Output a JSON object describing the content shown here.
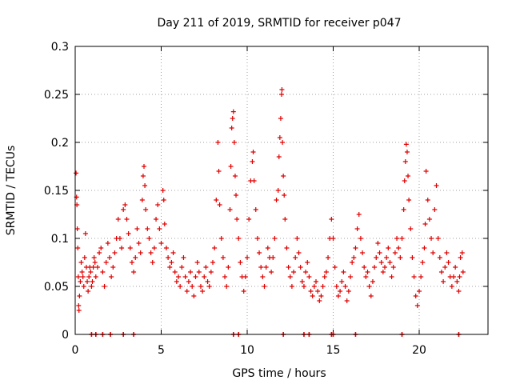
{
  "chart_data": {
    "type": "scatter",
    "title": "Day 211 of 2019, SRMTID for receiver p047",
    "xlabel": "GPS time / hours",
    "ylabel": "SRMTID / TECUs",
    "xlim": [
      0,
      24
    ],
    "ylim": [
      0,
      0.3
    ],
    "grid": true,
    "marker": "+",
    "color": "#e00000",
    "xticks": [
      {
        "value": 0,
        "label": "0"
      },
      {
        "value": 5,
        "label": "5"
      },
      {
        "value": 10,
        "label": "10"
      },
      {
        "value": 15,
        "label": "15"
      },
      {
        "value": 20,
        "label": "20"
      }
    ],
    "yticks": [
      {
        "value": 0,
        "label": "0"
      },
      {
        "value": 0.05,
        "label": "0.05"
      },
      {
        "value": 0.1,
        "label": "0.1"
      },
      {
        "value": 0.15,
        "label": "0.15"
      },
      {
        "value": 0.2,
        "label": "0.2"
      },
      {
        "value": 0.25,
        "label": "0.25"
      },
      {
        "value": 0.3,
        "label": "0.3"
      }
    ],
    "series": [
      {
        "name": "SRMTID",
        "points": [
          [
            0.05,
            0.168
          ],
          [
            0.08,
            0.143
          ],
          [
            0.1,
            0.135
          ],
          [
            0.12,
            0.11
          ],
          [
            0.15,
            0.09
          ],
          [
            0.18,
            0.06
          ],
          [
            0.2,
            0.03
          ],
          [
            0.22,
            0.025
          ],
          [
            0.25,
            0.04
          ],
          [
            0.3,
            0.055
          ],
          [
            0.35,
            0.075
          ],
          [
            0.4,
            0.065
          ],
          [
            0.45,
            0.06
          ],
          [
            0.5,
            0.05
          ],
          [
            0.55,
            0.08
          ],
          [
            0.6,
            0.105
          ],
          [
            0.65,
            0.07
          ],
          [
            0.7,
            0.055
          ],
          [
            0.75,
            0.045
          ],
          [
            0.8,
            0.06
          ],
          [
            0.85,
            0.07
          ],
          [
            0.9,
            0.065
          ],
          [
            0.95,
            0.05
          ],
          [
            1.0,
            0.055
          ],
          [
            1.05,
            0.07
          ],
          [
            1.1,
            0.08
          ],
          [
            1.15,
            0.075
          ],
          [
            1.2,
            0.06
          ],
          [
            1.3,
            0.07
          ],
          [
            1.4,
            0.085
          ],
          [
            1.5,
            0.09
          ],
          [
            1.6,
            0.065
          ],
          [
            1.7,
            0.05
          ],
          [
            1.8,
            0.075
          ],
          [
            1.9,
            0.095
          ],
          [
            2.0,
            0.08
          ],
          [
            2.1,
            0.06
          ],
          [
            2.2,
            0.07
          ],
          [
            2.3,
            0.085
          ],
          [
            2.4,
            0.1
          ],
          [
            2.5,
            0.12
          ],
          [
            2.6,
            0.1
          ],
          [
            2.7,
            0.09
          ],
          [
            2.8,
            0.13
          ],
          [
            2.9,
            0.135
          ],
          [
            3.0,
            0.12
          ],
          [
            3.1,
            0.105
          ],
          [
            3.2,
            0.09
          ],
          [
            3.3,
            0.075
          ],
          [
            3.4,
            0.065
          ],
          [
            3.5,
            0.08
          ],
          [
            3.6,
            0.11
          ],
          [
            3.7,
            0.095
          ],
          [
            3.8,
            0.085
          ],
          [
            3.9,
            0.14
          ],
          [
            3.95,
            0.165
          ],
          [
            4.0,
            0.175
          ],
          [
            4.05,
            0.155
          ],
          [
            4.1,
            0.13
          ],
          [
            4.2,
            0.11
          ],
          [
            4.3,
            0.1
          ],
          [
            4.4,
            0.085
          ],
          [
            4.5,
            0.075
          ],
          [
            4.6,
            0.09
          ],
          [
            4.7,
            0.12
          ],
          [
            4.8,
            0.135
          ],
          [
            4.9,
            0.11
          ],
          [
            5.0,
            0.095
          ],
          [
            5.1,
            0.15
          ],
          [
            5.15,
            0.14
          ],
          [
            5.2,
            0.115
          ],
          [
            5.3,
            0.09
          ],
          [
            5.4,
            0.08
          ],
          [
            5.5,
            0.07
          ],
          [
            5.6,
            0.075
          ],
          [
            5.7,
            0.085
          ],
          [
            5.8,
            0.065
          ],
          [
            5.9,
            0.055
          ],
          [
            6.0,
            0.06
          ],
          [
            6.1,
            0.05
          ],
          [
            6.2,
            0.07
          ],
          [
            6.3,
            0.08
          ],
          [
            6.4,
            0.06
          ],
          [
            6.5,
            0.045
          ],
          [
            6.6,
            0.055
          ],
          [
            6.7,
            0.065
          ],
          [
            6.8,
            0.05
          ],
          [
            6.9,
            0.04
          ],
          [
            7.0,
            0.06
          ],
          [
            7.1,
            0.075
          ],
          [
            7.2,
            0.065
          ],
          [
            7.3,
            0.05
          ],
          [
            7.4,
            0.045
          ],
          [
            7.5,
            0.06
          ],
          [
            7.6,
            0.07
          ],
          [
            7.7,
            0.055
          ],
          [
            7.8,
            0.05
          ],
          [
            7.9,
            0.065
          ],
          [
            8.0,
            0.075
          ],
          [
            8.1,
            0.09
          ],
          [
            8.2,
            0.14
          ],
          [
            8.3,
            0.2
          ],
          [
            8.35,
            0.17
          ],
          [
            8.4,
            0.135
          ],
          [
            8.5,
            0.1
          ],
          [
            8.6,
            0.08
          ],
          [
            8.7,
            0.06
          ],
          [
            8.8,
            0.05
          ],
          [
            8.9,
            0.07
          ],
          [
            9.0,
            0.13
          ],
          [
            9.05,
            0.175
          ],
          [
            9.1,
            0.215
          ],
          [
            9.15,
            0.225
          ],
          [
            9.2,
            0.232
          ],
          [
            9.25,
            0.2
          ],
          [
            9.3,
            0.165
          ],
          [
            9.35,
            0.145
          ],
          [
            9.4,
            0.12
          ],
          [
            9.5,
            0.1
          ],
          [
            9.6,
            0.075
          ],
          [
            9.7,
            0.06
          ],
          [
            9.8,
            0.045
          ],
          [
            9.9,
            0.06
          ],
          [
            10.0,
            0.08
          ],
          [
            10.1,
            0.12
          ],
          [
            10.2,
            0.16
          ],
          [
            10.3,
            0.18
          ],
          [
            10.35,
            0.19
          ],
          [
            10.4,
            0.16
          ],
          [
            10.5,
            0.13
          ],
          [
            10.6,
            0.1
          ],
          [
            10.7,
            0.085
          ],
          [
            10.8,
            0.07
          ],
          [
            10.9,
            0.06
          ],
          [
            11.0,
            0.05
          ],
          [
            11.1,
            0.07
          ],
          [
            11.2,
            0.09
          ],
          [
            11.3,
            0.08
          ],
          [
            11.4,
            0.065
          ],
          [
            11.5,
            0.08
          ],
          [
            11.6,
            0.1
          ],
          [
            11.7,
            0.14
          ],
          [
            11.8,
            0.15
          ],
          [
            11.85,
            0.185
          ],
          [
            11.9,
            0.205
          ],
          [
            11.95,
            0.225
          ],
          [
            12.0,
            0.25
          ],
          [
            12.02,
            0.255
          ],
          [
            12.05,
            0.2
          ],
          [
            12.1,
            0.165
          ],
          [
            12.15,
            0.145
          ],
          [
            12.2,
            0.12
          ],
          [
            12.3,
            0.09
          ],
          [
            12.4,
            0.07
          ],
          [
            12.5,
            0.06
          ],
          [
            12.6,
            0.05
          ],
          [
            12.7,
            0.065
          ],
          [
            12.8,
            0.08
          ],
          [
            12.9,
            0.1
          ],
          [
            13.0,
            0.085
          ],
          [
            13.1,
            0.07
          ],
          [
            13.2,
            0.055
          ],
          [
            13.3,
            0.05
          ],
          [
            13.4,
            0.065
          ],
          [
            13.5,
            0.075
          ],
          [
            13.6,
            0.06
          ],
          [
            13.7,
            0.045
          ],
          [
            13.8,
            0.04
          ],
          [
            13.9,
            0.05
          ],
          [
            14.0,
            0.055
          ],
          [
            14.1,
            0.045
          ],
          [
            14.2,
            0.035
          ],
          [
            14.3,
            0.04
          ],
          [
            14.4,
            0.05
          ],
          [
            14.5,
            0.06
          ],
          [
            14.6,
            0.065
          ],
          [
            14.7,
            0.08
          ],
          [
            14.8,
            0.1
          ],
          [
            14.9,
            0.12
          ],
          [
            15.0,
            0.1
          ],
          [
            15.1,
            0.07
          ],
          [
            15.2,
            0.05
          ],
          [
            15.3,
            0.04
          ],
          [
            15.4,
            0.045
          ],
          [
            15.5,
            0.055
          ],
          [
            15.6,
            0.065
          ],
          [
            15.7,
            0.05
          ],
          [
            15.8,
            0.035
          ],
          [
            15.9,
            0.045
          ],
          [
            16.0,
            0.06
          ],
          [
            16.1,
            0.075
          ],
          [
            16.2,
            0.08
          ],
          [
            16.3,
            0.09
          ],
          [
            16.4,
            0.11
          ],
          [
            16.5,
            0.125
          ],
          [
            16.6,
            0.1
          ],
          [
            16.7,
            0.085
          ],
          [
            16.8,
            0.07
          ],
          [
            16.9,
            0.06
          ],
          [
            17.0,
            0.065
          ],
          [
            17.1,
            0.05
          ],
          [
            17.2,
            0.04
          ],
          [
            17.3,
            0.055
          ],
          [
            17.4,
            0.07
          ],
          [
            17.5,
            0.08
          ],
          [
            17.6,
            0.095
          ],
          [
            17.7,
            0.085
          ],
          [
            17.8,
            0.075
          ],
          [
            17.9,
            0.065
          ],
          [
            18.0,
            0.07
          ],
          [
            18.1,
            0.08
          ],
          [
            18.2,
            0.09
          ],
          [
            18.3,
            0.075
          ],
          [
            18.4,
            0.06
          ],
          [
            18.5,
            0.07
          ],
          [
            18.6,
            0.085
          ],
          [
            18.7,
            0.1
          ],
          [
            18.8,
            0.09
          ],
          [
            18.9,
            0.08
          ],
          [
            19.0,
            0.1
          ],
          [
            19.1,
            0.13
          ],
          [
            19.15,
            0.16
          ],
          [
            19.2,
            0.18
          ],
          [
            19.25,
            0.198
          ],
          [
            19.3,
            0.19
          ],
          [
            19.35,
            0.165
          ],
          [
            19.4,
            0.14
          ],
          [
            19.5,
            0.11
          ],
          [
            19.6,
            0.08
          ],
          [
            19.7,
            0.06
          ],
          [
            19.8,
            0.04
          ],
          [
            19.9,
            0.03
          ],
          [
            20.0,
            0.045
          ],
          [
            20.1,
            0.06
          ],
          [
            20.2,
            0.075
          ],
          [
            20.3,
            0.09
          ],
          [
            20.35,
            0.115
          ],
          [
            20.4,
            0.17
          ],
          [
            20.5,
            0.14
          ],
          [
            20.6,
            0.12
          ],
          [
            20.7,
            0.1
          ],
          [
            20.8,
            0.085
          ],
          [
            20.9,
            0.13
          ],
          [
            21.0,
            0.155
          ],
          [
            21.1,
            0.1
          ],
          [
            21.2,
            0.08
          ],
          [
            21.3,
            0.065
          ],
          [
            21.4,
            0.055
          ],
          [
            21.5,
            0.07
          ],
          [
            21.6,
            0.085
          ],
          [
            21.7,
            0.075
          ],
          [
            21.8,
            0.06
          ],
          [
            21.9,
            0.05
          ],
          [
            22.0,
            0.06
          ],
          [
            22.1,
            0.07
          ],
          [
            22.2,
            0.055
          ],
          [
            22.3,
            0.045
          ],
          [
            22.35,
            0.06
          ],
          [
            22.4,
            0.08
          ],
          [
            22.5,
            0.085
          ],
          [
            22.55,
            0.065
          ]
        ],
        "baseline_markers": [
          0.95,
          1.2,
          1.6,
          2.05,
          2.8,
          3.4,
          9.2,
          9.5,
          12.1,
          13.3,
          13.6,
          14.9,
          15.0,
          16.3,
          19.0,
          22.3
        ]
      }
    ]
  }
}
